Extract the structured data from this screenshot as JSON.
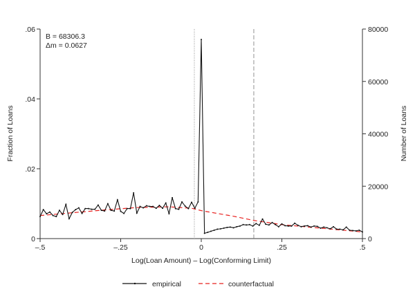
{
  "chart_data": {
    "type": "line",
    "xlabel": "Log(Loan Amount) – Log(Conforming Limit)",
    "ylabel": "Fraction of Loans",
    "ylabel_right": "Number of Loans",
    "xlim": [
      -0.5,
      0.5
    ],
    "ylim": [
      0,
      0.06
    ],
    "ylim_right": [
      0,
      80000
    ],
    "x_ticks": [
      -0.5,
      -0.25,
      0,
      0.25,
      0.5
    ],
    "x_tick_labels": [
      "–.5",
      "–.25",
      "0",
      ".25",
      ".5"
    ],
    "y_ticks": [
      0,
      0.02,
      0.04,
      0.06
    ],
    "y_tick_labels": [
      "0",
      ".02",
      ".04",
      ".06"
    ],
    "y_right_ticks": [
      0,
      20000,
      40000,
      60000,
      80000
    ],
    "y_right_tick_labels": [
      "0",
      "20000",
      "40000",
      "60000",
      "80000"
    ],
    "grid": false,
    "legend_position": "bottom",
    "annotations": [
      "B = 68306.3",
      "Δm = 0.0627"
    ],
    "vertical_lines": [
      {
        "x": -0.0215,
        "style": "dotted"
      },
      {
        "x": 0.163,
        "style": "dashed"
      }
    ],
    "series": [
      {
        "name": "empirical",
        "color": "#111111",
        "style": "solid-with-markers",
        "x_start": -0.5,
        "x_step": 0.01,
        "values": [
          0.0063,
          0.0083,
          0.0071,
          0.0076,
          0.0066,
          0.0063,
          0.0081,
          0.0069,
          0.0098,
          0.0057,
          0.0075,
          0.0083,
          0.0088,
          0.0072,
          0.0086,
          0.0086,
          0.0084,
          0.0084,
          0.0096,
          0.0081,
          0.0079,
          0.01,
          0.0081,
          0.0079,
          0.0111,
          0.0078,
          0.0072,
          0.0086,
          0.0086,
          0.0131,
          0.0073,
          0.0092,
          0.0088,
          0.0094,
          0.0092,
          0.0092,
          0.0087,
          0.0095,
          0.0087,
          0.0102,
          0.0071,
          0.0117,
          0.0086,
          0.0084,
          0.0105,
          0.0093,
          0.0086,
          0.0104,
          0.0087,
          0.0105,
          0.057,
          0.0015,
          0.0018,
          0.0021,
          0.0024,
          0.0027,
          0.0028,
          0.003,
          0.0032,
          0.0033,
          0.0031,
          0.0034,
          0.0036,
          0.004,
          0.0039,
          0.004,
          0.0036,
          0.0043,
          0.0038,
          0.0056,
          0.0041,
          0.0039,
          0.0046,
          0.004,
          0.0034,
          0.0042,
          0.0037,
          0.0036,
          0.0036,
          0.0044,
          0.0038,
          0.0034,
          0.0036,
          0.0037,
          0.0033,
          0.0036,
          0.0035,
          0.003,
          0.0033,
          0.0031,
          0.0028,
          0.0034,
          0.0027,
          0.0027,
          0.0025,
          0.0033,
          0.0024,
          0.0023,
          0.0022,
          0.0024,
          0.0019
        ]
      },
      {
        "name": "counterfactual",
        "color": "#e8201e",
        "style": "dashed",
        "points": [
          [
            -0.5,
            0.0066
          ],
          [
            -0.4,
            0.0074
          ],
          [
            -0.3,
            0.0082
          ],
          [
            -0.2,
            0.0089
          ],
          [
            -0.1,
            0.0091
          ],
          [
            -0.03,
            0.0087
          ],
          [
            0,
            0.008
          ],
          [
            0.1,
            0.0064
          ],
          [
            0.163,
            0.0052
          ],
          [
            0.25,
            0.004
          ],
          [
            0.5,
            0.0019
          ]
        ]
      }
    ]
  }
}
